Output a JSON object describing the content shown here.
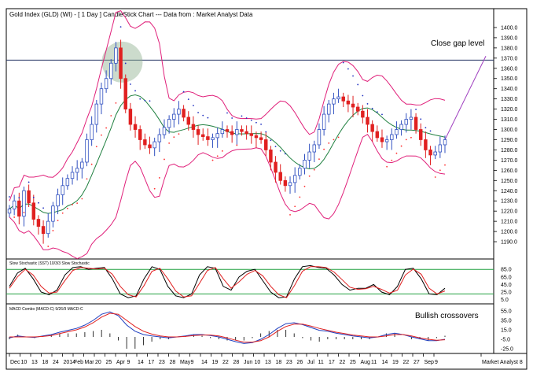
{
  "chart_data": [
    {
      "type": "candlestick",
      "title": "Gold Index (GLD) (WI) - [ 1 Day ] CandleStick Chart --- Data from : Market Analyst Data",
      "ylim": [
        1180,
        1410
      ],
      "y_ticks": [
        "1400.0",
        "1390.0",
        "1380.0",
        "1370.0",
        "1360.0",
        "1350.0",
        "1340.0",
        "1330.0",
        "1320.0",
        "1310.0",
        "1300.0",
        "1290.0",
        "1280.0",
        "1270.0",
        "1260.0",
        "1250.0",
        "1240.0",
        "1230.0",
        "1220.0",
        "1210.0",
        "1200.0",
        "1190.0"
      ],
      "x_ticks": [
        "Dec",
        "10",
        "13",
        "18",
        "24",
        "2014",
        "Feb",
        "Mar",
        "20",
        "25",
        "Apr",
        "9",
        "14",
        "17",
        "23",
        "28",
        "May",
        "9",
        "14",
        "19",
        "22",
        "28",
        "Jun",
        "10",
        "13",
        "18",
        "23",
        "26",
        "Jul",
        "11",
        "17",
        "22",
        "25",
        "Aug",
        "11",
        "14",
        "19",
        "22",
        "27",
        "Sep",
        "9",
        "Market Analyst 8"
      ],
      "annotations": [
        "Close gap level"
      ],
      "close_gap_level": 1368,
      "close": [
        1222,
        1230,
        1215,
        1240,
        1228,
        1212,
        1205,
        1198,
        1210,
        1225,
        1236,
        1245,
        1252,
        1258,
        1262,
        1268,
        1290,
        1305,
        1325,
        1340,
        1350,
        1365,
        1380,
        1350,
        1320,
        1305,
        1300,
        1290,
        1285,
        1282,
        1288,
        1295,
        1302,
        1310,
        1315,
        1320,
        1312,
        1305,
        1300,
        1295,
        1293,
        1290,
        1292,
        1296,
        1300,
        1298,
        1295,
        1300,
        1298,
        1296,
        1294,
        1292,
        1290,
        1280,
        1268,
        1258,
        1250,
        1245,
        1248,
        1255,
        1262,
        1270,
        1278,
        1285,
        1300,
        1315,
        1325,
        1330,
        1332,
        1328,
        1325,
        1322,
        1318,
        1312,
        1305,
        1298,
        1292,
        1288,
        1290,
        1295,
        1300,
        1305,
        1310,
        1312,
        1300,
        1290,
        1280,
        1275,
        1278,
        1285,
        1290
      ]
    },
    {
      "type": "line",
      "title": "Slow Stochastic (SST) 10/3/3 Slow Stochastic",
      "ylim": [
        0,
        100
      ],
      "y_ticks": [
        "85.0",
        "65.0",
        "45.0",
        "25.0",
        "5.0"
      ],
      "reference_lines": [
        85,
        20
      ],
      "series": [
        {
          "values": [
            40,
            75,
            88,
            60,
            25,
            18,
            30,
            70,
            90,
            92,
            85,
            88,
            90,
            60,
            20,
            10,
            15,
            60,
            92,
            85,
            40,
            15,
            10,
            20,
            70,
            92,
            88,
            40,
            30,
            65,
            80,
            85,
            55,
            25,
            10,
            12,
            60,
            92,
            95,
            90,
            88,
            70,
            45,
            30,
            35,
            35,
            45,
            25,
            18,
            40,
            85,
            88,
            60,
            20,
            18,
            35
          ]
        },
        {
          "values": [
            35,
            65,
            85,
            70,
            40,
            22,
            25,
            55,
            82,
            90,
            88,
            86,
            88,
            72,
            40,
            18,
            12,
            42,
            80,
            88,
            60,
            28,
            12,
            15,
            48,
            82,
            90,
            60,
            35,
            52,
            72,
            82,
            68,
            40,
            18,
            10,
            42,
            80,
            92,
            92,
            90,
            78,
            58,
            38,
            32,
            34,
            40,
            32,
            22,
            30,
            70,
            86,
            72,
            35,
            20,
            28
          ]
        }
      ]
    },
    {
      "type": "line",
      "title": "MACD Combo (MACD-C) 9/26/9 MACD-C",
      "ylim": [
        -30,
        60
      ],
      "y_ticks": [
        "55.0",
        "35.0",
        "15.0",
        "-5.0",
        "-25.0"
      ],
      "annotations": [
        "Bullish crossovers"
      ],
      "series": [
        {
          "values": [
            -2,
            2,
            0,
            -1,
            2,
            5,
            10,
            14,
            18,
            25,
            35,
            48,
            53,
            45,
            25,
            12,
            5,
            2,
            0,
            -2,
            0,
            2,
            5,
            5,
            3,
            0,
            -5,
            -10,
            -14,
            -12,
            -5,
            5,
            18,
            28,
            30,
            26,
            20,
            14,
            12,
            8,
            5,
            2,
            0,
            -2,
            0,
            5,
            8,
            5,
            0,
            -4,
            -8,
            -8,
            -5
          ]
        },
        {
          "values": [
            0,
            0,
            0,
            0,
            1,
            3,
            7,
            11,
            15,
            21,
            30,
            42,
            50,
            48,
            35,
            22,
            12,
            6,
            2,
            0,
            0,
            1,
            3,
            4,
            4,
            2,
            -2,
            -7,
            -11,
            -11,
            -8,
            0,
            12,
            22,
            27,
            27,
            23,
            18,
            14,
            10,
            7,
            4,
            2,
            0,
            0,
            2,
            5,
            5,
            2,
            -2,
            -5,
            -7,
            -6
          ]
        }
      ]
    }
  ],
  "colors": {
    "up": "#3050c0",
    "down": "#e02020",
    "band": "#e0207a",
    "ma": "#208040",
    "dots": "#ff3030",
    "stoch_line_a": "#000000",
    "stoch_line_b": "#e02020",
    "macd_a": "#2040c0",
    "macd_b": "#e02020",
    "grid": "#20a040"
  }
}
